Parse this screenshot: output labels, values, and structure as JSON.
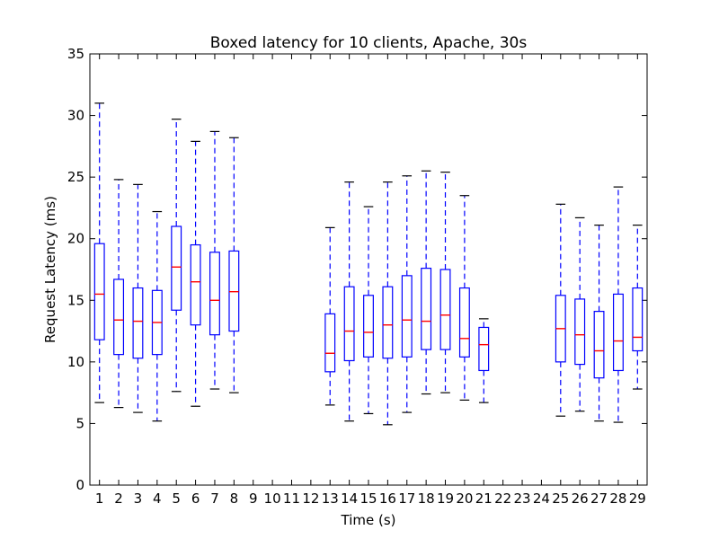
{
  "chart_data": {
    "type": "box",
    "title": "Boxed latency for 10 clients, Apache, 30s",
    "xlabel": "Time (s)",
    "ylabel": "Request Latency (ms)",
    "ylim": [
      0,
      35
    ],
    "xlim": [
      0.5,
      29.5
    ],
    "yticks": [
      0,
      5,
      10,
      15,
      20,
      25,
      30,
      35
    ],
    "categories": [
      "1",
      "2",
      "3",
      "4",
      "5",
      "6",
      "7",
      "8",
      "9",
      "10",
      "11",
      "12",
      "13",
      "14",
      "15",
      "16",
      "17",
      "18",
      "19",
      "20",
      "21",
      "22",
      "23",
      "24",
      "25",
      "26",
      "27",
      "28",
      "29"
    ],
    "grid": false,
    "colors": {
      "box": "#0000ff",
      "median": "#ff0000",
      "whisker": "#0000ff",
      "cap": "#000000"
    },
    "boxes": [
      {
        "x": 1,
        "whislo": 6.7,
        "q1": 11.8,
        "med": 15.5,
        "q3": 19.6,
        "whishi": 31.0
      },
      {
        "x": 2,
        "whislo": 6.3,
        "q1": 10.6,
        "med": 13.4,
        "q3": 16.7,
        "whishi": 24.8
      },
      {
        "x": 3,
        "whislo": 5.9,
        "q1": 10.3,
        "med": 13.3,
        "q3": 16.0,
        "whishi": 24.4
      },
      {
        "x": 4,
        "whislo": 5.2,
        "q1": 10.6,
        "med": 13.2,
        "q3": 15.8,
        "whishi": 22.2
      },
      {
        "x": 5,
        "whislo": 7.6,
        "q1": 14.2,
        "med": 17.7,
        "q3": 21.0,
        "whishi": 29.7
      },
      {
        "x": 6,
        "whislo": 6.4,
        "q1": 13.0,
        "med": 16.5,
        "q3": 19.5,
        "whishi": 27.9
      },
      {
        "x": 7,
        "whislo": 7.8,
        "q1": 12.2,
        "med": 15.0,
        "q3": 18.9,
        "whishi": 28.7
      },
      {
        "x": 8,
        "whislo": 7.5,
        "q1": 12.5,
        "med": 15.7,
        "q3": 19.0,
        "whishi": 28.2
      },
      {
        "x": 13,
        "whislo": 6.5,
        "q1": 9.2,
        "med": 10.7,
        "q3": 13.9,
        "whishi": 20.9
      },
      {
        "x": 14,
        "whislo": 5.2,
        "q1": 10.1,
        "med": 12.5,
        "q3": 16.1,
        "whishi": 24.6
      },
      {
        "x": 15,
        "whislo": 5.8,
        "q1": 10.4,
        "med": 12.4,
        "q3": 15.4,
        "whishi": 22.6
      },
      {
        "x": 16,
        "whislo": 4.9,
        "q1": 10.3,
        "med": 13.0,
        "q3": 16.1,
        "whishi": 24.6
      },
      {
        "x": 17,
        "whislo": 5.9,
        "q1": 10.4,
        "med": 13.4,
        "q3": 17.0,
        "whishi": 25.1
      },
      {
        "x": 18,
        "whislo": 7.4,
        "q1": 11.0,
        "med": 13.3,
        "q3": 17.6,
        "whishi": 25.5
      },
      {
        "x": 19,
        "whislo": 7.5,
        "q1": 11.0,
        "med": 13.8,
        "q3": 17.5,
        "whishi": 25.4
      },
      {
        "x": 20,
        "whislo": 6.9,
        "q1": 10.4,
        "med": 11.9,
        "q3": 16.0,
        "whishi": 23.5
      },
      {
        "x": 21,
        "whislo": 6.7,
        "q1": 9.3,
        "med": 11.4,
        "q3": 12.8,
        "whishi": 13.5
      },
      {
        "x": 25,
        "whislo": 5.6,
        "q1": 10.0,
        "med": 12.7,
        "q3": 15.4,
        "whishi": 22.8
      },
      {
        "x": 26,
        "whislo": 6.0,
        "q1": 9.8,
        "med": 12.2,
        "q3": 15.1,
        "whishi": 21.7
      },
      {
        "x": 27,
        "whislo": 5.2,
        "q1": 8.7,
        "med": 10.9,
        "q3": 14.1,
        "whishi": 21.1
      },
      {
        "x": 28,
        "whislo": 5.1,
        "q1": 9.3,
        "med": 11.7,
        "q3": 15.5,
        "whishi": 24.2
      },
      {
        "x": 29,
        "whislo": 7.8,
        "q1": 10.9,
        "med": 12.0,
        "q3": 16.0,
        "whishi": 21.1
      }
    ]
  }
}
